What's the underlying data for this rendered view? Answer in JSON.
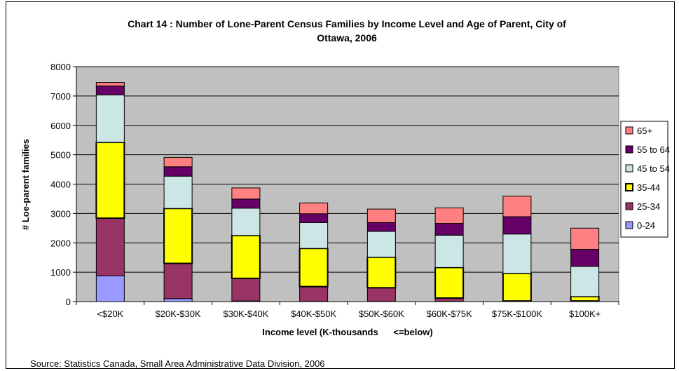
{
  "title_line1": "Chart 14 : Number of Lone-Parent Census Families by Income Level and Age of Parent, City of",
  "title_line2": "Ottawa, 2006",
  "source": "Source: Statistics Canada, Small Area Administrative Data Division, 2006",
  "colors": {
    "0-24": "#9999ff",
    "25-34": "#993366",
    "35-44": "#ffff00",
    "45 to 54": "#cce6e6",
    "55 to 64": "#660066",
    "65+": "#ff8080",
    "plot_bg": "#c0c0c0"
  },
  "chart_data": {
    "type": "bar",
    "stacked": true,
    "title": "Chart 14 : Number of Lone-Parent Census Families by Income Level and Age of Parent, City of Ottawa, 2006",
    "xlabel": "Income level (K-thousands      <=below)",
    "ylabel": "# Loe-parent families",
    "ylim": [
      0,
      8000
    ],
    "yticks": [
      0,
      1000,
      2000,
      3000,
      4000,
      5000,
      6000,
      7000,
      8000
    ],
    "grid": true,
    "legend": "right",
    "categories": [
      "<$20K",
      "$20K-$30K",
      "$30K-$40K",
      "$40K-$50K",
      "$50K-$60K",
      "$60K-$75K",
      "$75K-$100K",
      "$100K+"
    ],
    "series": [
      {
        "name": "0-24",
        "values": [
          880,
          100,
          20,
          10,
          10,
          10,
          5,
          5
        ]
      },
      {
        "name": "25-34",
        "values": [
          1960,
          1200,
          770,
          500,
          460,
          110,
          15,
          15
        ]
      },
      {
        "name": "35-44",
        "values": [
          2580,
          1870,
          1460,
          1300,
          1040,
          1040,
          940,
          150
        ]
      },
      {
        "name": "45 to 54",
        "values": [
          1620,
          1100,
          930,
          880,
          880,
          1100,
          1340,
          1030
        ]
      },
      {
        "name": "55 to 64",
        "values": [
          300,
          320,
          310,
          300,
          300,
          400,
          590,
          580
        ]
      },
      {
        "name": "65+",
        "values": [
          120,
          320,
          380,
          370,
          460,
          530,
          700,
          720
        ]
      }
    ]
  }
}
